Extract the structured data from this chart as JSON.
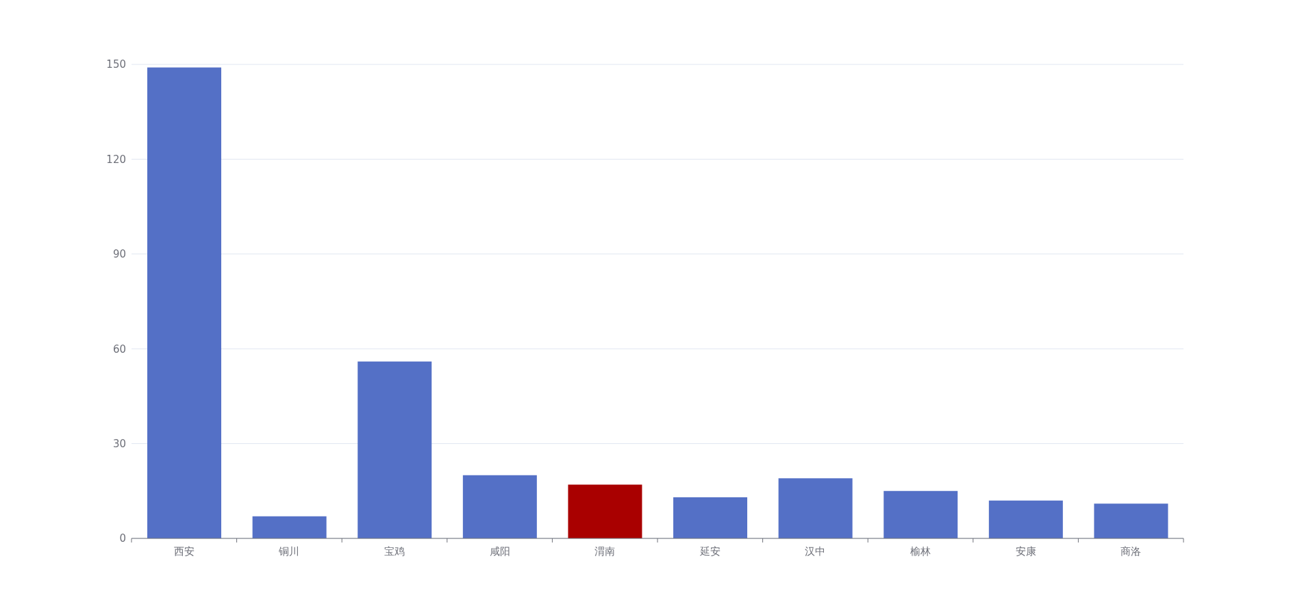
{
  "chart_data": {
    "type": "bar",
    "categories": [
      "西安",
      "铜川",
      "宝鸡",
      "咸阳",
      "渭南",
      "延安",
      "汉中",
      "榆林",
      "安康",
      "商洛"
    ],
    "values": [
      149,
      7,
      56,
      20,
      17,
      13,
      19,
      15,
      12,
      11
    ],
    "colors": [
      "#5470c6",
      "#5470c6",
      "#5470c6",
      "#5470c6",
      "#a90000",
      "#5470c6",
      "#5470c6",
      "#5470c6",
      "#5470c6",
      "#5470c6"
    ],
    "ylim": [
      0,
      150
    ],
    "yticks": [
      0,
      30,
      60,
      90,
      120,
      150
    ],
    "grid": "y"
  }
}
